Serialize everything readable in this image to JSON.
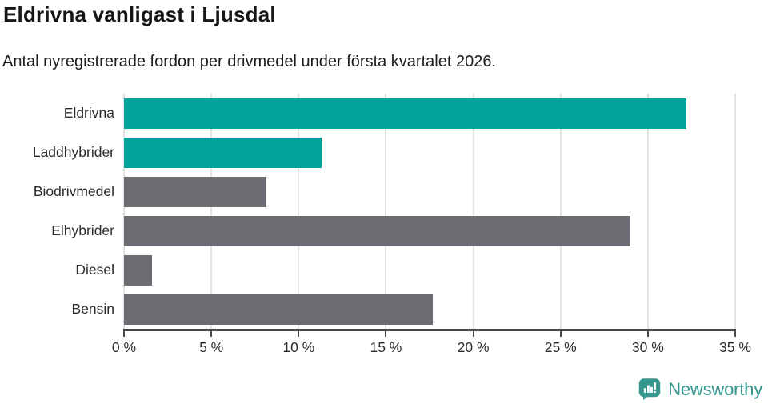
{
  "header": {
    "title": "Eldrivna vanligast i Ljusdal",
    "subtitle": "Antal nyregistrerade fordon per drivmedel under första kvartalet 2026."
  },
  "chart_data": {
    "type": "bar",
    "orientation": "horizontal",
    "title": "Eldrivna vanligast i Ljusdal",
    "subtitle": "Antal nyregistrerade fordon per drivmedel under första kvartalet 2026.",
    "categories": [
      "Eldrivna",
      "Laddhybrider",
      "Biodrivmedel",
      "Elhybrider",
      "Diesel",
      "Bensin"
    ],
    "values": [
      32.2,
      11.3,
      8.1,
      29.0,
      1.6,
      17.7
    ],
    "unit": "%",
    "xlim": [
      0,
      35
    ],
    "x_tick_values": [
      0,
      5,
      10,
      15,
      20,
      25,
      30,
      35
    ],
    "x_tick_labels": [
      "0 %",
      "5 %",
      "10 %",
      "15 %",
      "20 %",
      "25 %",
      "30 %",
      "35 %"
    ],
    "grid": true,
    "legend": false,
    "bar_colors": [
      "#00a49b",
      "#00a49b",
      "#6c6b71",
      "#6c6b71",
      "#6c6b71",
      "#6c6b71"
    ],
    "highlight_color": "#00a49b",
    "default_color": "#6c6b71"
  },
  "colors": {
    "teal": "#00a49b",
    "gray": "#6c6b71",
    "gridline": "#e3e3e3",
    "axis": "#4b4b4b",
    "brand": "#36978e"
  },
  "footer": {
    "brand": "Newsworthy",
    "logo_icon": "newsworthy-speech-bubble-bar-chart-icon"
  }
}
